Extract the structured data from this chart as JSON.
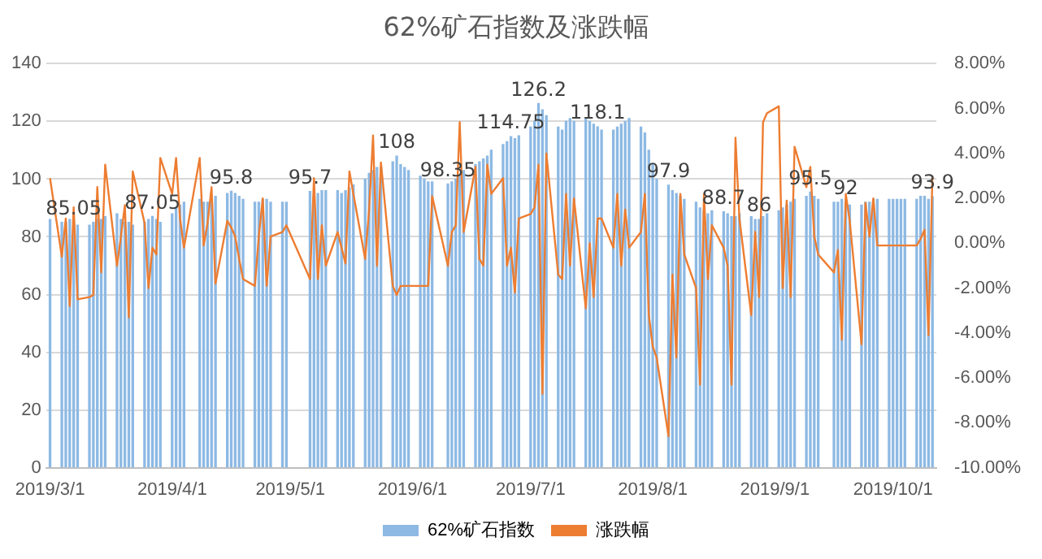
{
  "chart_data": {
    "type": "bar",
    "title": "62%矿石指数及涨跌幅",
    "x": [
      "2019-03-01",
      "2019-03-04",
      "2019-03-05",
      "2019-03-06",
      "2019-03-07",
      "2019-03-08",
      "2019-03-11",
      "2019-03-12",
      "2019-03-13",
      "2019-03-14",
      "2019-03-15",
      "2019-03-18",
      "2019-03-19",
      "2019-03-20",
      "2019-03-21",
      "2019-03-22",
      "2019-03-25",
      "2019-03-26",
      "2019-03-27",
      "2019-03-28",
      "2019-03-29",
      "2019-04-01",
      "2019-04-02",
      "2019-04-03",
      "2019-04-04",
      "2019-04-08",
      "2019-04-09",
      "2019-04-10",
      "2019-04-11",
      "2019-04-12",
      "2019-04-15",
      "2019-04-16",
      "2019-04-17",
      "2019-04-18",
      "2019-04-19",
      "2019-04-22",
      "2019-04-23",
      "2019-04-24",
      "2019-04-25",
      "2019-04-26",
      "2019-04-29",
      "2019-04-30",
      "2019-05-06",
      "2019-05-07",
      "2019-05-08",
      "2019-05-09",
      "2019-05-10",
      "2019-05-13",
      "2019-05-14",
      "2019-05-15",
      "2019-05-16",
      "2019-05-17",
      "2019-05-20",
      "2019-05-21",
      "2019-05-22",
      "2019-05-23",
      "2019-05-24",
      "2019-05-27",
      "2019-05-28",
      "2019-05-29",
      "2019-05-30",
      "2019-05-31",
      "2019-06-03",
      "2019-06-04",
      "2019-06-05",
      "2019-06-06",
      "2019-06-10",
      "2019-06-11",
      "2019-06-12",
      "2019-06-13",
      "2019-06-14",
      "2019-06-17",
      "2019-06-18",
      "2019-06-19",
      "2019-06-20",
      "2019-06-21",
      "2019-06-24",
      "2019-06-25",
      "2019-06-26",
      "2019-06-27",
      "2019-06-28",
      "2019-07-01",
      "2019-07-02",
      "2019-07-03",
      "2019-07-04",
      "2019-07-05",
      "2019-07-08",
      "2019-07-09",
      "2019-07-10",
      "2019-07-11",
      "2019-07-12",
      "2019-07-15",
      "2019-07-16",
      "2019-07-17",
      "2019-07-18",
      "2019-07-19",
      "2019-07-22",
      "2019-07-23",
      "2019-07-24",
      "2019-07-25",
      "2019-07-26",
      "2019-07-29",
      "2019-07-30",
      "2019-07-31",
      "2019-08-01",
      "2019-08-02",
      "2019-08-05",
      "2019-08-06",
      "2019-08-07",
      "2019-08-08",
      "2019-08-09",
      "2019-08-12",
      "2019-08-13",
      "2019-08-14",
      "2019-08-15",
      "2019-08-16",
      "2019-08-19",
      "2019-08-20",
      "2019-08-21",
      "2019-08-22",
      "2019-08-23",
      "2019-08-26",
      "2019-08-27",
      "2019-08-28",
      "2019-08-29",
      "2019-08-30",
      "2019-09-02",
      "2019-09-03",
      "2019-09-04",
      "2019-09-05",
      "2019-09-06",
      "2019-09-09",
      "2019-09-10",
      "2019-09-11",
      "2019-09-12",
      "2019-09-16",
      "2019-09-17",
      "2019-09-18",
      "2019-09-19",
      "2019-09-20",
      "2019-09-23",
      "2019-09-24",
      "2019-09-25",
      "2019-09-26",
      "2019-09-27",
      "2019-09-30",
      "2019-10-01",
      "2019-10-02",
      "2019-10-03",
      "2019-10-04",
      "2019-10-07",
      "2019-10-08",
      "2019-10-09",
      "2019-10-10",
      "2019-10-11"
    ],
    "series": [
      {
        "name": "62%矿石指数",
        "color": "#8db9e4",
        "values": [
          86,
          85,
          85,
          86,
          85.05,
          84,
          84,
          85,
          86,
          86,
          87,
          88,
          86,
          85,
          85,
          84,
          85,
          86,
          87.05,
          86,
          85,
          88,
          90,
          91,
          92,
          93,
          92,
          92,
          93,
          94,
          95,
          95.8,
          95,
          94,
          93,
          92,
          92,
          93,
          93,
          92,
          92,
          92,
          95.7,
          94,
          95,
          96,
          96,
          96,
          95,
          96,
          97,
          98,
          100,
          102,
          103,
          104,
          104,
          106,
          108,
          105,
          104,
          103,
          101,
          100,
          99,
          99,
          98.35,
          99,
          100,
          101,
          103,
          105,
          106,
          107,
          108,
          110,
          112,
          113,
          114.75,
          114,
          115,
          118,
          120,
          126.2,
          124,
          122,
          118,
          117,
          120,
          121,
          120,
          121,
          120,
          119,
          118.1,
          117,
          117,
          118,
          119,
          120,
          121,
          118,
          116,
          110,
          105,
          100,
          97.9,
          96,
          95,
          94,
          93,
          92,
          90,
          89,
          88,
          89,
          88.7,
          88,
          87,
          87,
          88,
          87,
          86,
          86,
          87,
          88,
          89,
          90,
          91,
          92,
          93,
          94,
          95.5,
          94,
          93,
          92,
          92,
          93,
          92,
          91,
          91,
          92,
          92,
          93,
          93,
          93,
          93,
          93,
          93,
          93,
          93,
          94,
          94,
          93,
          93.9
        ]
      },
      {
        "name": "涨跌幅",
        "type": "line",
        "axis": "y2",
        "color": "#ed7d31",
        "values": [
          2.9,
          -0.6,
          1.1,
          -2.8,
          1.6,
          -2.5,
          -2.4,
          -2.3,
          2.5,
          -1.3,
          3.5,
          -1.0,
          0.3,
          1.7,
          -3.3,
          3.2,
          0.9,
          -2.0,
          -0.2,
          -0.5,
          3.8,
          2.2,
          3.8,
          1.1,
          -0.2,
          3.8,
          -0.1,
          0.9,
          2.5,
          -1.8,
          1.0,
          0.7,
          0.3,
          -0.7,
          -1.6,
          -1.9,
          0.3,
          2.0,
          -1.9,
          0.3,
          0.5,
          0.8,
          -1.6,
          2.9,
          -1.6,
          0.8,
          -1.0,
          0.5,
          -0.2,
          -0.9,
          3.2,
          2.2,
          -0.7,
          1.5,
          4.8,
          -1.0,
          3.6,
          -1.9,
          -2.3,
          -1.9,
          -1.9,
          -1.9,
          -1.9,
          -1.9,
          -1.9,
          2.1,
          -1.0,
          0.5,
          0.8,
          5.4,
          0.5,
          3.4,
          -0.7,
          -1.0,
          3.5,
          2.2,
          2.9,
          -1.0,
          -0.2,
          -2.2,
          1.1,
          1.3,
          1.6,
          3.5,
          -6.7,
          4.0,
          -1.4,
          -1.6,
          2.2,
          -1.0,
          2.0,
          -2.9,
          0.0,
          -2.4,
          1.1,
          1.1,
          -0.2,
          2.2,
          -1.0,
          1.5,
          -0.2,
          0.5,
          2.2,
          -3.2,
          -4.6,
          -5.1,
          -8.6,
          -1.4,
          -5.1,
          2.2,
          -0.5,
          -2.0,
          -6.3,
          2.2,
          -1.6,
          0.8,
          -0.2,
          -1.0,
          -6.3,
          4.7,
          1.1,
          -3.2,
          0.5,
          -2.4,
          5.4,
          5.8,
          6.1,
          -2.0,
          1.9,
          -2.4,
          4.3,
          2.5,
          3.4,
          0.3,
          -0.5,
          -1.3,
          -0.3,
          -4.3,
          2.2,
          1.0,
          -4.5,
          1.8,
          0.3,
          2.0,
          -0.1,
          -0.1,
          -0.1,
          -0.1,
          -0.1,
          -0.1,
          -0.1,
          0.2,
          0.6,
          -4.1,
          3.0
        ]
      }
    ],
    "xlim": [
      "2019-02-28",
      "2019-10-12"
    ],
    "xticks": [
      {
        "value": "2019-03-01",
        "label": "2019/3/1"
      },
      {
        "value": "2019-04-01",
        "label": "2019/4/1"
      },
      {
        "value": "2019-05-01",
        "label": "2019/5/1"
      },
      {
        "value": "2019-06-01",
        "label": "2019/6/1"
      },
      {
        "value": "2019-07-01",
        "label": "2019/7/1"
      },
      {
        "value": "2019-08-01",
        "label": "2019/8/1"
      },
      {
        "value": "2019-09-01",
        "label": "2019/9/1"
      },
      {
        "value": "2019-10-01",
        "label": "2019/10/1"
      }
    ],
    "ylim": [
      0,
      140
    ],
    "yticks": [
      0,
      20,
      40,
      60,
      80,
      100,
      120,
      140
    ],
    "y2lim": [
      -10,
      8
    ],
    "y2ticks": [
      {
        "value": -10,
        "label": "-10.00%"
      },
      {
        "value": -8,
        "label": "-8.00%"
      },
      {
        "value": -6,
        "label": "-6.00%"
      },
      {
        "value": -4,
        "label": "-4.00%"
      },
      {
        "value": -2,
        "label": "-2.00%"
      },
      {
        "value": 0,
        "label": "0.00%"
      },
      {
        "value": 2,
        "label": "2.00%"
      },
      {
        "value": 4,
        "label": "4.00%"
      },
      {
        "value": 6,
        "label": "6.00%"
      },
      {
        "value": 8,
        "label": "8.00%"
      }
    ],
    "annotations": [
      {
        "text": "85.05",
        "x": "2019-03-07",
        "y": 85.05
      },
      {
        "text": "87.05",
        "x": "2019-03-27",
        "y": 87.05
      },
      {
        "text": "95.8",
        "x": "2019-04-16",
        "y": 95.8
      },
      {
        "text": "95.7",
        "x": "2019-05-06",
        "y": 95.7
      },
      {
        "text": "108",
        "x": "2019-05-28",
        "y": 108
      },
      {
        "text": "98.35",
        "x": "2019-06-10",
        "y": 98.35
      },
      {
        "text": "114.75",
        "x": "2019-06-26",
        "y": 114.75
      },
      {
        "text": "126.2",
        "x": "2019-07-03",
        "y": 126.2
      },
      {
        "text": "118.1",
        "x": "2019-07-18",
        "y": 118.1
      },
      {
        "text": "97.9",
        "x": "2019-08-05",
        "y": 97.9
      },
      {
        "text": "88.7",
        "x": "2019-08-19",
        "y": 88.7
      },
      {
        "text": "86",
        "x": "2019-08-28",
        "y": 86
      },
      {
        "text": "95.5",
        "x": "2019-09-10",
        "y": 95.5
      },
      {
        "text": "92",
        "x": "2019-09-19",
        "y": 92
      },
      {
        "text": "93.9",
        "x": "2019-10-11",
        "y": 93.9
      }
    ],
    "grid": "y",
    "legend": "bottom",
    "marker": "none",
    "line_style": "solid"
  }
}
